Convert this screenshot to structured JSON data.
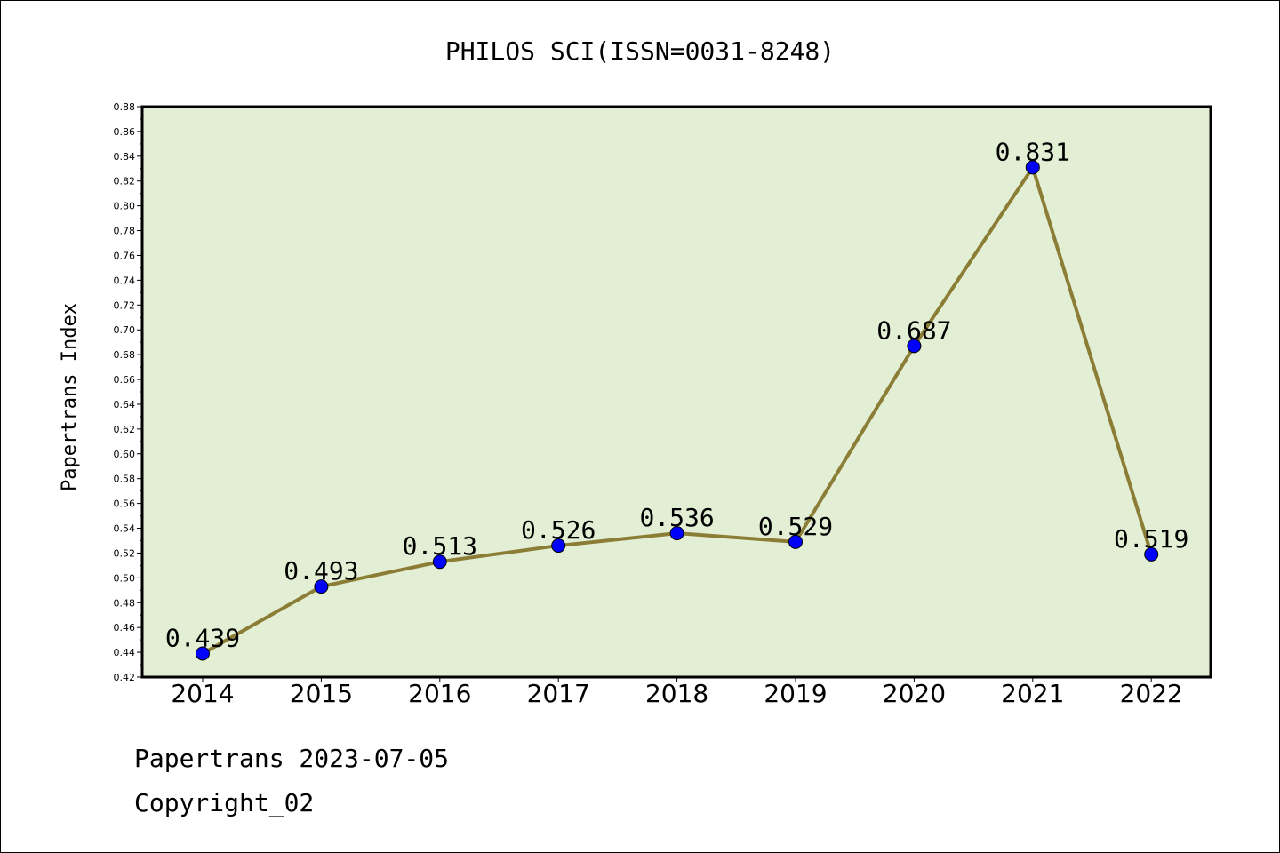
{
  "chart_data": {
    "type": "line",
    "title": "PHILOS SCI(ISSN=0031-8248)",
    "xlabel": "",
    "ylabel": "Papertrans Index",
    "categories": [
      "2014",
      "2015",
      "2016",
      "2017",
      "2018",
      "2019",
      "2020",
      "2021",
      "2022"
    ],
    "values": [
      0.439,
      0.493,
      0.513,
      0.526,
      0.536,
      0.529,
      0.687,
      0.831,
      0.519
    ],
    "data_labels": [
      "0.439",
      "0.493",
      "0.513",
      "0.526",
      "0.536",
      "0.529",
      "0.687",
      "0.831",
      "0.519"
    ],
    "ylim": [
      0.42,
      0.88
    ],
    "yticks": [
      "0.42",
      "0.44",
      "0.46",
      "0.48",
      "0.50",
      "0.52",
      "0.54",
      "0.56",
      "0.58",
      "0.60",
      "0.62",
      "0.64",
      "0.66",
      "0.68",
      "0.70",
      "0.72",
      "0.74",
      "0.76",
      "0.78",
      "0.80",
      "0.82",
      "0.84",
      "0.86",
      "0.88"
    ],
    "grid": false,
    "legend": "none",
    "colors": {
      "plot_background": "#e2efd5",
      "line": "#8b7d35",
      "marker": "#0000ff"
    }
  },
  "footer": {
    "line1": "Papertrans 2023-07-05",
    "line2": "Copyright_02"
  }
}
